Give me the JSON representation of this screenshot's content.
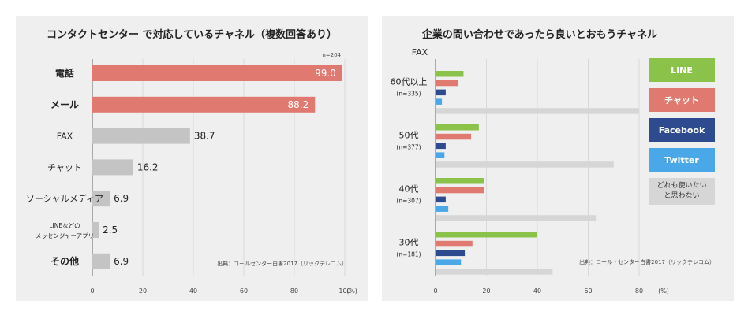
{
  "chart_data": [
    {
      "type": "bar",
      "orientation": "horizontal",
      "title": "コンタクトセンター で対応しているチャネル（複数回答あり）",
      "n_note": "n=204",
      "categories": [
        {
          "label": "電話",
          "bold": true,
          "sub": ""
        },
        {
          "label": "メール",
          "bold": true,
          "sub": ""
        },
        {
          "label": "FAX",
          "bold": false,
          "sub": ""
        },
        {
          "label": "チャット",
          "bold": false,
          "sub": ""
        },
        {
          "label": "ソーシャルメディア",
          "bold": false,
          "sub": ""
        },
        {
          "label": "LINEなどの",
          "bold": false,
          "sub": "メッセンジャーアプリ"
        },
        {
          "label": "その他",
          "bold": true,
          "sub": ""
        }
      ],
      "values": [
        99.0,
        88.2,
        38.7,
        16.2,
        6.9,
        2.5,
        6.9
      ],
      "value_labels": [
        "99.0",
        "88.2",
        "38.7",
        "16.2",
        "6.9",
        "2.5",
        "6.9"
      ],
      "highlight_color": "#e07a70",
      "default_color": "#c4c4c4",
      "highlight_count": 2,
      "xlim": [
        0,
        100
      ],
      "xticks": [
        "0",
        "20",
        "40",
        "60",
        "80",
        "100"
      ],
      "xunit": "(%)",
      "source": "出典：コールセンター白書2017（リックテレコム）",
      "grid": true
    },
    {
      "type": "bar",
      "orientation": "horizontal",
      "title": "企業の問い合わせであったら良いとおもうチャネル",
      "corner_label": "FAX",
      "groups": [
        {
          "label": "60代以上",
          "n": "(n=335)"
        },
        {
          "label": "50代",
          "n": "(n=377)"
        },
        {
          "label": "40代",
          "n": "(n=307)"
        },
        {
          "label": "30代",
          "n": "(n=181)"
        }
      ],
      "series": [
        {
          "name": "LINE",
          "color": "#8bc34a",
          "values": [
            11,
            17,
            19,
            40
          ]
        },
        {
          "name": "チャット",
          "color": "#e07a70",
          "values": [
            9,
            14,
            19,
            14.5
          ]
        },
        {
          "name": "Facebook",
          "color": "#2e4b8f",
          "values": [
            4,
            4,
            4,
            11.5
          ]
        },
        {
          "name": "Twitter",
          "color": "#4aa8e8",
          "values": [
            2.5,
            3.5,
            5,
            10
          ]
        },
        {
          "name": "どれも使いたいと思わない",
          "legend_lines": [
            "どれも使いたい",
            "と思わない"
          ],
          "color": "#d6d6d6",
          "values": [
            80,
            70,
            63,
            46
          ]
        }
      ],
      "xlim": [
        0,
        80
      ],
      "xticks": [
        "0",
        "20",
        "40",
        "60",
        "80"
      ],
      "xunit": "(%)",
      "source": "出典：コール・センター白書2017（リックテレコム）",
      "grid": true
    }
  ]
}
